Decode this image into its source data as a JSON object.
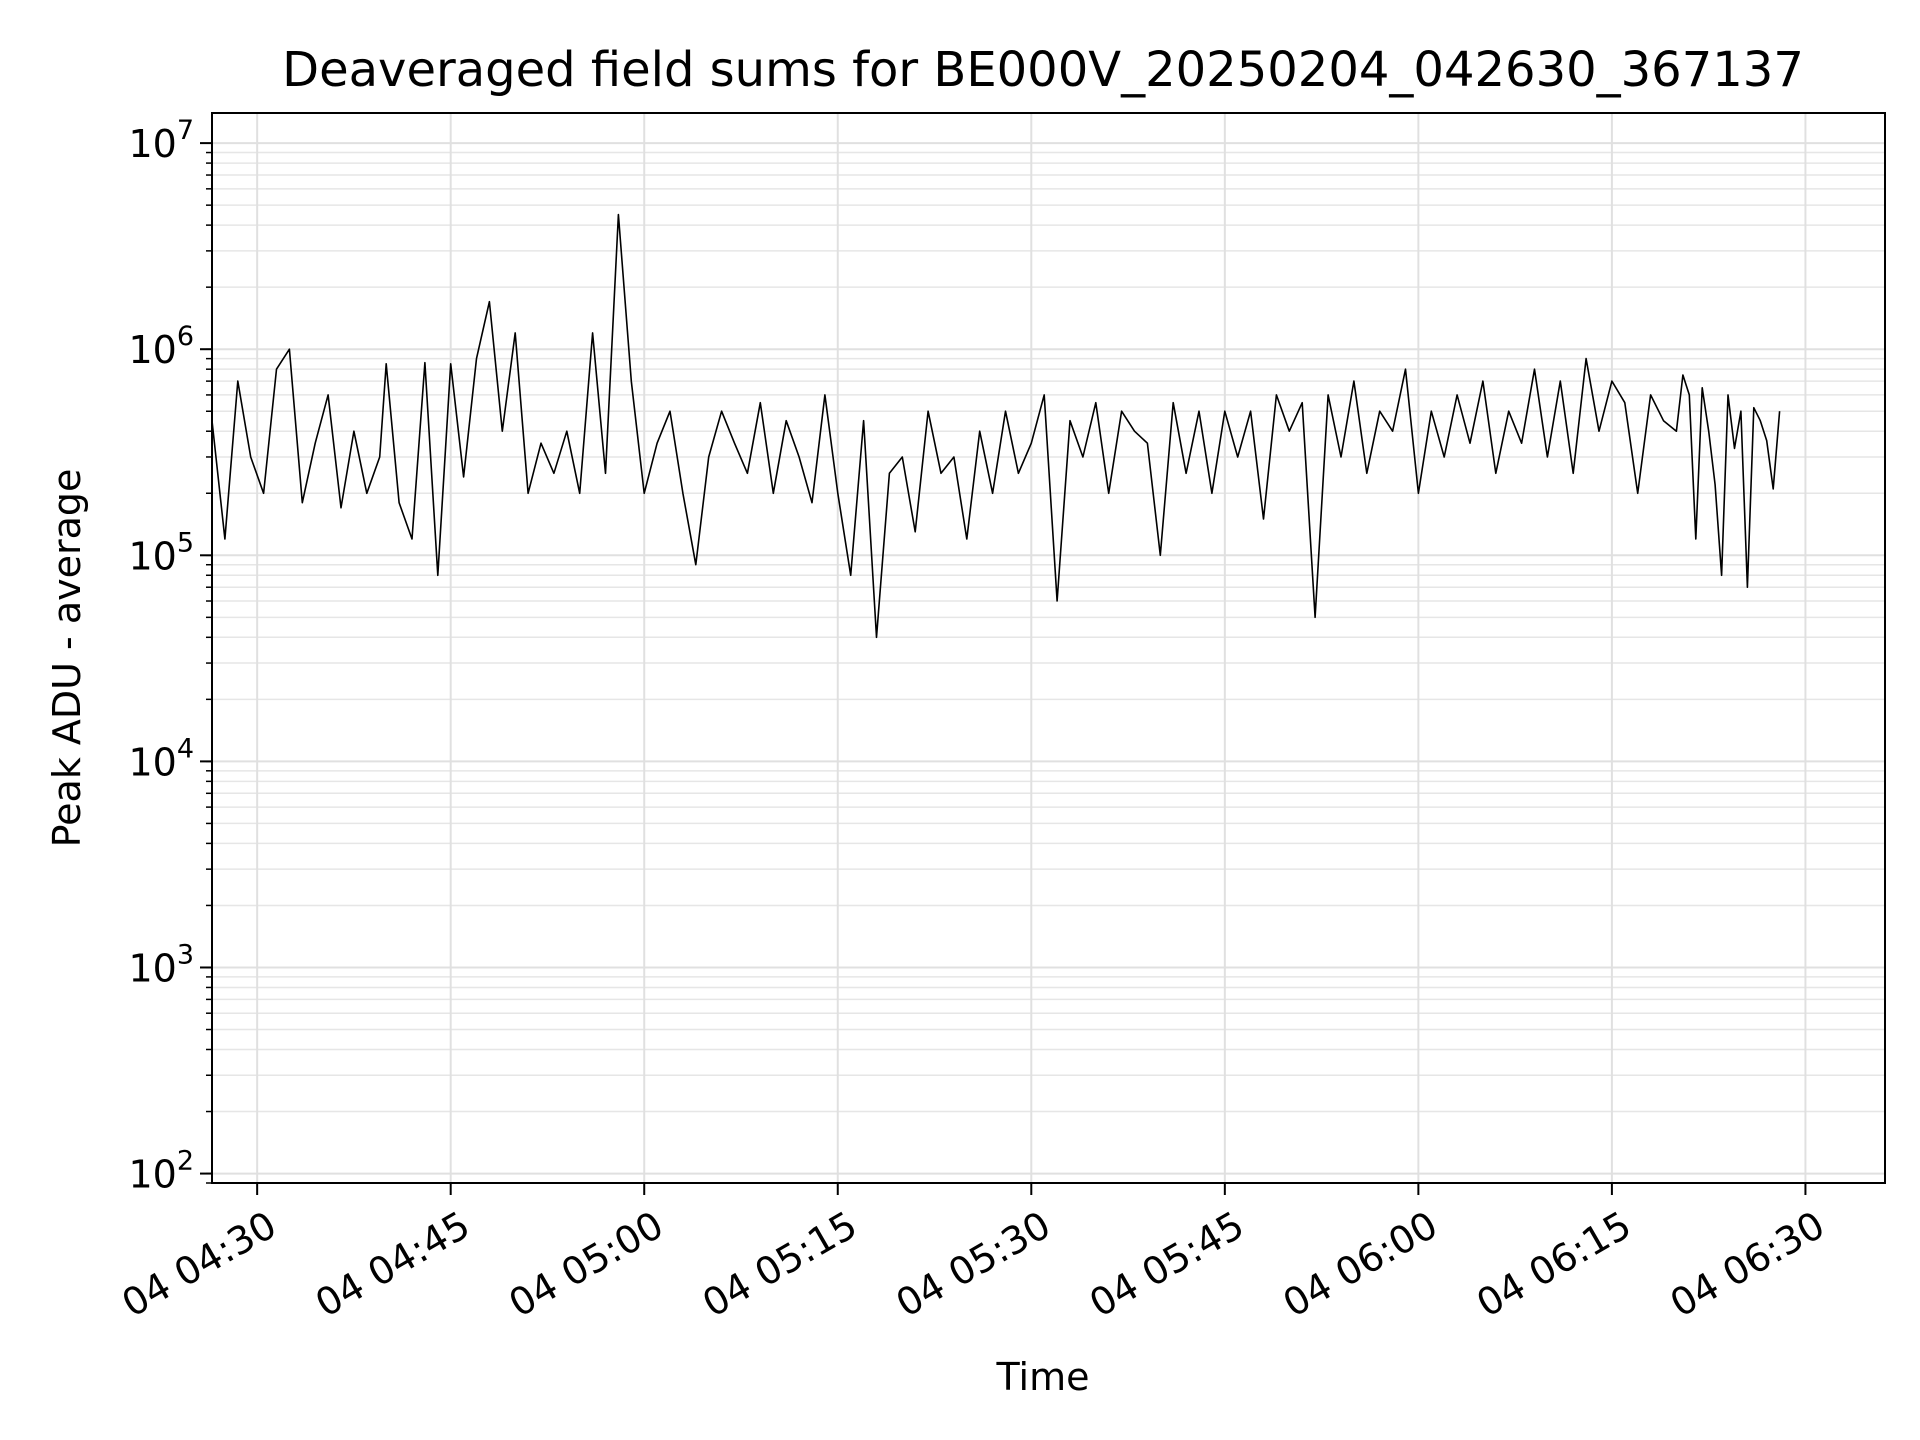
{
  "chart_data": {
    "type": "line",
    "title": "Deaveraged field sums for BE000V_20250204_042630_367137",
    "xlabel": "Time",
    "ylabel": "Peak ADU - average",
    "y_scale": "log",
    "ylim": [
      90,
      14000000
    ],
    "xlim": [
      "2025-02-04 04:26:30",
      "2025-02-04 06:36:10"
    ],
    "grid": true,
    "line_color": "#000000",
    "x_ticks": [
      {
        "label": "04 04:30",
        "value": "2025-02-04 04:30"
      },
      {
        "label": "04 04:45",
        "value": "2025-02-04 04:45"
      },
      {
        "label": "04 05:00",
        "value": "2025-02-04 05:00"
      },
      {
        "label": "04 05:15",
        "value": "2025-02-04 05:15"
      },
      {
        "label": "04 05:30",
        "value": "2025-02-04 05:30"
      },
      {
        "label": "04 05:45",
        "value": "2025-02-04 05:45"
      },
      {
        "label": "04 06:00",
        "value": "2025-02-04 06:00"
      },
      {
        "label": "04 06:15",
        "value": "2025-02-04 06:15"
      },
      {
        "label": "04 06:30",
        "value": "2025-02-04 06:30"
      }
    ],
    "y_ticks": [
      {
        "label": "10",
        "exp": "2",
        "value": 100
      },
      {
        "label": "10",
        "exp": "3",
        "value": 1000
      },
      {
        "label": "10",
        "exp": "4",
        "value": 10000
      },
      {
        "label": "10",
        "exp": "5",
        "value": 100000
      },
      {
        "label": "10",
        "exp": "6",
        "value": 1000000
      },
      {
        "label": "10",
        "exp": "7",
        "value": 10000000
      }
    ],
    "series": [
      {
        "x": [
          "04:26:30",
          "04:27:30",
          "04:28:30",
          "04:29:30",
          "04:30:30",
          "04:31:30",
          "04:32:30",
          "04:33:30",
          "04:34:30",
          "04:35:30",
          "04:36:30",
          "04:37:30",
          "04:38:30",
          "04:39:30",
          "04:40:00",
          "04:41:00",
          "04:42:00",
          "04:43:00",
          "04:44:00",
          "04:45:00",
          "04:46:00",
          "04:47:00",
          "04:48:00",
          "04:49:00",
          "04:50:00",
          "04:51:00",
          "04:52:00",
          "04:53:00",
          "04:54:00",
          "04:55:00",
          "04:56:00",
          "04:57:00",
          "04:58:00",
          "04:59:00",
          "05:00:00",
          "05:01:00",
          "05:02:00",
          "05:03:00",
          "05:04:00",
          "05:05:00",
          "05:06:00",
          "05:07:00",
          "05:08:00",
          "05:09:00",
          "05:10:00",
          "05:11:00",
          "05:12:00",
          "05:13:00",
          "05:14:00",
          "05:15:00",
          "05:16:00",
          "05:17:00",
          "05:18:00",
          "05:19:00",
          "05:20:00",
          "05:21:00",
          "05:22:00",
          "05:23:00",
          "05:24:00",
          "05:25:00",
          "05:26:00",
          "05:27:00",
          "05:28:00",
          "05:29:00",
          "05:30:00",
          "05:31:00",
          "05:32:00",
          "05:33:00",
          "05:34:00",
          "05:35:00",
          "05:36:00",
          "05:37:00",
          "05:38:00",
          "05:39:00",
          "05:40:00",
          "05:41:00",
          "05:42:00",
          "05:43:00",
          "05:44:00",
          "05:45:00",
          "05:46:00",
          "05:47:00",
          "05:48:00",
          "05:49:00",
          "05:50:00",
          "05:51:00",
          "05:52:00",
          "05:53:00",
          "05:54:00",
          "05:55:00",
          "05:56:00",
          "05:57:00",
          "05:58:00",
          "05:59:00",
          "06:00:00",
          "06:01:00",
          "06:02:00",
          "06:03:00",
          "06:04:00",
          "06:05:00",
          "06:06:00",
          "06:07:00",
          "06:08:00",
          "06:09:00",
          "06:10:00",
          "06:11:00",
          "06:12:00",
          "06:13:00",
          "06:14:00",
          "06:15:00",
          "06:16:00",
          "06:17:00",
          "06:18:00",
          "06:19:00",
          "06:20:00",
          "06:20:30",
          "06:21:00",
          "06:21:30",
          "06:22:00",
          "06:22:30",
          "06:23:00",
          "06:23:30",
          "06:24:00",
          "06:24:30",
          "06:25:00",
          "06:25:30",
          "06:26:00",
          "06:26:30",
          "06:27:00",
          "06:27:30",
          "06:28:00"
        ],
        "y": [
          450000,
          120000,
          700000,
          300000,
          200000,
          800000,
          1000000,
          180000,
          350000,
          600000,
          170000,
          400000,
          200000,
          300000,
          850000,
          180000,
          120000,
          860000,
          80000,
          850000,
          240000,
          900000,
          1700000,
          400000,
          1200000,
          200000,
          350000,
          250000,
          400000,
          200000,
          1200000,
          250000,
          4500000,
          700000,
          200000,
          350000,
          500000,
          200000,
          90000,
          300000,
          500000,
          350000,
          250000,
          550000,
          200000,
          450000,
          300000,
          180000,
          600000,
          200000,
          80000,
          450000,
          40000,
          250000,
          300000,
          130000,
          500000,
          250000,
          300000,
          120000,
          400000,
          200000,
          500000,
          250000,
          350000,
          600000,
          60000,
          450000,
          300000,
          550000,
          200000,
          500000,
          400000,
          350000,
          100000,
          550000,
          250000,
          500000,
          200000,
          500000,
          300000,
          500000,
          150000,
          600000,
          400000,
          550000,
          50000,
          600000,
          300000,
          700000,
          250000,
          500000,
          400000,
          800000,
          200000,
          500000,
          300000,
          600000,
          350000,
          700000,
          250000,
          500000,
          350000,
          800000,
          300000,
          700000,
          250000,
          900000,
          400000,
          700000,
          550000,
          200000,
          600000,
          450000,
          400000,
          750000,
          600000,
          120000,
          650000,
          400000,
          220000,
          80000,
          600000,
          330000,
          500000,
          70000,
          520000,
          450000,
          360000,
          210000,
          500000
        ]
      }
    ]
  }
}
